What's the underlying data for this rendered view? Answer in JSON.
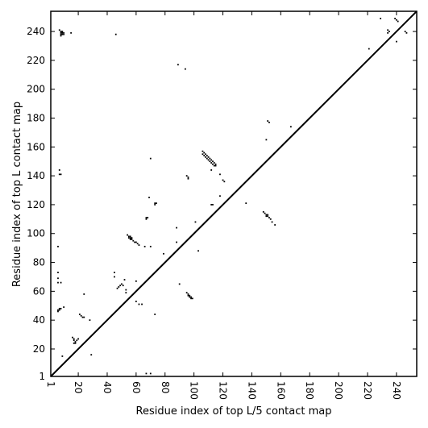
{
  "chart_data": {
    "type": "scatter",
    "title": "",
    "xlabel": "Residue index of top L/5 contact map",
    "ylabel": "Residue index of top L contact map",
    "xlim": [
      1,
      254
    ],
    "ylim": [
      1,
      254
    ],
    "xticks": [
      1,
      20,
      40,
      60,
      80,
      100,
      120,
      140,
      160,
      180,
      200,
      220,
      240
    ],
    "yticks": [
      1,
      20,
      40,
      60,
      80,
      100,
      120,
      140,
      160,
      180,
      200,
      220,
      240
    ],
    "xtick_labels": [
      "1",
      "20",
      "40",
      "60",
      "80",
      "100",
      "120",
      "140",
      "160",
      "180",
      "200",
      "220",
      "240"
    ],
    "ytick_labels": [
      "1",
      "20",
      "40",
      "60",
      "80",
      "100",
      "120",
      "140",
      "160",
      "180",
      "200",
      "220",
      "240"
    ],
    "grid": false,
    "diagonal": true,
    "marker": "square",
    "color": "#000000",
    "series": [
      {
        "name": "",
        "points": [
          [
            8,
            240
          ],
          [
            9,
            240
          ],
          [
            8,
            239
          ],
          [
            9,
            239
          ],
          [
            10,
            239
          ],
          [
            8,
            238
          ],
          [
            9,
            238
          ],
          [
            10,
            238
          ],
          [
            7,
            241
          ],
          [
            15,
            239
          ],
          [
            46,
            238
          ],
          [
            8,
            237
          ],
          [
            234,
            241
          ],
          [
            235,
            240
          ],
          [
            234,
            239
          ],
          [
            229,
            249
          ],
          [
            239,
            249
          ],
          [
            240,
            248
          ],
          [
            241,
            247
          ],
          [
            240,
            233
          ],
          [
            221,
            228
          ],
          [
            246,
            240
          ],
          [
            247,
            239
          ],
          [
            89,
            217
          ],
          [
            94,
            214
          ],
          [
            151,
            178
          ],
          [
            152,
            177
          ],
          [
            150,
            165
          ],
          [
            167,
            174
          ],
          [
            106,
            157
          ],
          [
            107,
            156
          ],
          [
            106,
            155
          ],
          [
            108,
            155
          ],
          [
            107,
            154
          ],
          [
            109,
            154
          ],
          [
            108,
            153
          ],
          [
            110,
            153
          ],
          [
            109,
            152
          ],
          [
            111,
            152
          ],
          [
            110,
            151
          ],
          [
            112,
            151
          ],
          [
            111,
            150
          ],
          [
            113,
            150
          ],
          [
            112,
            149
          ],
          [
            114,
            149
          ],
          [
            113,
            148
          ],
          [
            115,
            148
          ],
          [
            114,
            147
          ],
          [
            115,
            147
          ],
          [
            112,
            144
          ],
          [
            70,
            152
          ],
          [
            7,
            144
          ],
          [
            7,
            141
          ],
          [
            8,
            141
          ],
          [
            95,
            140
          ],
          [
            96,
            139
          ],
          [
            96,
            138
          ],
          [
            120,
            137
          ],
          [
            121,
            136
          ],
          [
            118,
            141
          ],
          [
            69,
            125
          ],
          [
            73,
            121
          ],
          [
            74,
            121
          ],
          [
            73,
            120
          ],
          [
            112,
            120
          ],
          [
            113,
            120
          ],
          [
            136,
            121
          ],
          [
            118,
            126
          ],
          [
            67,
            111
          ],
          [
            68,
            111
          ],
          [
            67,
            110
          ],
          [
            101,
            108
          ],
          [
            148,
            115
          ],
          [
            149,
            114
          ],
          [
            150,
            113
          ],
          [
            151,
            113
          ],
          [
            150,
            112
          ],
          [
            151,
            112
          ],
          [
            152,
            111
          ],
          [
            153,
            110
          ],
          [
            154,
            108
          ],
          [
            156,
            106
          ],
          [
            88,
            104
          ],
          [
            54,
            99
          ],
          [
            55,
            98
          ],
          [
            56,
            98
          ],
          [
            55,
            97
          ],
          [
            56,
            97
          ],
          [
            57,
            97
          ],
          [
            56,
            96
          ],
          [
            57,
            96
          ],
          [
            58,
            95
          ],
          [
            59,
            94
          ],
          [
            60,
            94
          ],
          [
            61,
            93
          ],
          [
            62,
            92
          ],
          [
            6,
            91
          ],
          [
            66,
            91
          ],
          [
            70,
            91
          ],
          [
            88,
            94
          ],
          [
            103,
            88
          ],
          [
            79,
            86
          ],
          [
            45,
            73
          ],
          [
            45,
            70
          ],
          [
            6,
            73
          ],
          [
            6,
            69
          ],
          [
            6,
            66
          ],
          [
            8,
            66
          ],
          [
            49,
            64
          ],
          [
            50,
            65
          ],
          [
            51,
            64
          ],
          [
            48,
            63
          ],
          [
            47,
            62
          ],
          [
            52,
            68
          ],
          [
            53,
            61
          ],
          [
            53,
            59
          ],
          [
            60,
            67
          ],
          [
            90,
            65
          ],
          [
            95,
            59
          ],
          [
            96,
            58
          ],
          [
            96,
            57
          ],
          [
            97,
            57
          ],
          [
            97,
            56
          ],
          [
            98,
            56
          ],
          [
            98,
            55
          ],
          [
            99,
            55
          ],
          [
            24,
            58
          ],
          [
            60,
            53
          ],
          [
            64,
            51
          ],
          [
            62,
            51
          ],
          [
            7,
            48
          ],
          [
            8,
            48
          ],
          [
            6,
            47
          ],
          [
            7,
            47
          ],
          [
            6,
            46
          ],
          [
            10,
            49
          ],
          [
            73,
            44
          ],
          [
            21,
            44
          ],
          [
            22,
            43
          ],
          [
            23,
            42
          ],
          [
            24,
            42
          ],
          [
            28,
            40
          ],
          [
            16,
            28
          ],
          [
            17,
            27
          ],
          [
            17,
            26
          ],
          [
            18,
            25
          ],
          [
            19,
            26
          ],
          [
            20,
            27
          ],
          [
            17,
            24
          ],
          [
            18,
            24
          ],
          [
            9,
            15
          ],
          [
            29,
            16
          ],
          [
            67,
            3
          ],
          [
            70,
            3
          ]
        ]
      }
    ]
  }
}
